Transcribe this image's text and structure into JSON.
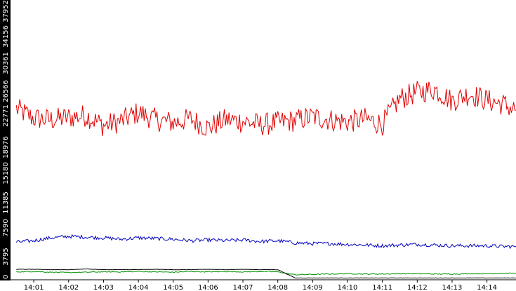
{
  "chart_data": {
    "type": "line",
    "title": "",
    "xlabel": "",
    "ylabel": "",
    "x_ticks": [
      "14:01",
      "14:02",
      "14:03",
      "14:04",
      "14:05",
      "14:06",
      "14:07",
      "14:08",
      "14:09",
      "14:10",
      "14:11",
      "14:12",
      "14:13",
      "14:14"
    ],
    "y_ticks": [
      "0",
      "3795",
      "7590",
      "11385",
      "15180",
      "18976",
      "22771",
      "26566",
      "30361",
      "34156",
      "37952"
    ],
    "xlim": [
      "14:00:20",
      "14:14:50"
    ],
    "ylim": [
      0,
      37952
    ],
    "grid": false,
    "legend": "none",
    "x": [
      "14:00:30",
      "14:01:00",
      "14:01:30",
      "14:02:00",
      "14:02:30",
      "14:03:00",
      "14:03:30",
      "14:04:00",
      "14:04:30",
      "14:05:00",
      "14:05:30",
      "14:06:00",
      "14:06:30",
      "14:07:00",
      "14:07:30",
      "14:08:00",
      "14:08:30",
      "14:09:00",
      "14:09:30",
      "14:10:00",
      "14:10:30",
      "14:11:00",
      "14:11:30",
      "14:12:00",
      "14:12:30",
      "14:13:00",
      "14:13:30",
      "14:14:00",
      "14:14:30",
      "14:14:50"
    ],
    "series": [
      {
        "color": "#e00000",
        "values": [
          23500,
          22200,
          22000,
          22300,
          22600,
          21200,
          21800,
          23000,
          22000,
          21600,
          22100,
          20900,
          22000,
          21800,
          21300,
          21600,
          21900,
          22400,
          22000,
          21700,
          22100,
          21400,
          24900,
          25800,
          26200,
          24600,
          25600,
          24700,
          24100,
          23300
        ]
      },
      {
        "color": "#0000c0",
        "values": [
          5100,
          5300,
          5700,
          5900,
          5800,
          5700,
          5500,
          5700,
          5600,
          5500,
          5300,
          5400,
          5300,
          5400,
          5200,
          5300,
          5000,
          4900,
          4900,
          4800,
          4700,
          4600,
          4700,
          4800,
          4700,
          4600,
          4600,
          4600,
          4500,
          4500
        ]
      },
      {
        "color": "#009000",
        "values": [
          1000,
          1050,
          950,
          900,
          950,
          1000,
          1000,
          1050,
          1000,
          950,
          1050,
          1000,
          1050,
          1000,
          1050,
          1000,
          600,
          650,
          700,
          750,
          700,
          700,
          750,
          750,
          700,
          700,
          750,
          750,
          800,
          800
        ]
      },
      {
        "color": "#000000",
        "values": [
          1350,
          1350,
          1300,
          1300,
          1400,
          1300,
          1300,
          1300,
          1350,
          1300,
          1300,
          1350,
          1300,
          1350,
          1300,
          1300,
          150,
          150,
          150,
          150,
          150,
          150,
          150,
          150,
          150,
          150,
          150,
          150,
          150,
          150
        ]
      }
    ]
  }
}
